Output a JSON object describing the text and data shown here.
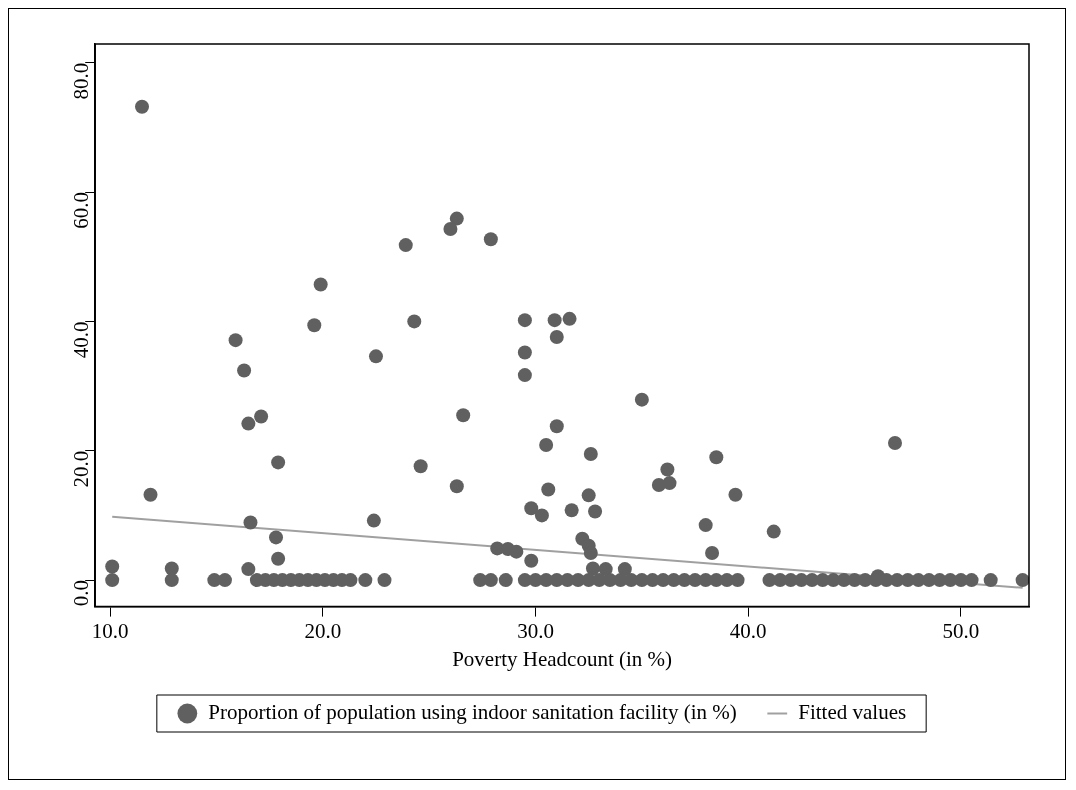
{
  "chart_data": {
    "type": "scatter",
    "line_style": "solid",
    "xlabel": "Poverty Headcount (in %)",
    "xlim": [
      9.3,
      53.2
    ],
    "ylim": [
      -4.1,
      82.9
    ],
    "xticks": [
      {
        "value": 10,
        "label": "10.0"
      },
      {
        "value": 20,
        "label": "20.0"
      },
      {
        "value": 30,
        "label": "30.0"
      },
      {
        "value": 40,
        "label": "40.0"
      },
      {
        "value": 50,
        "label": "50.0"
      }
    ],
    "yticks": [
      {
        "value": 0,
        "label": "0.0"
      },
      {
        "value": 20,
        "label": "20.0"
      },
      {
        "value": 40,
        "label": "40.0"
      },
      {
        "value": 60,
        "label": "60.0"
      },
      {
        "value": 80,
        "label": "80.0"
      }
    ],
    "grid": false,
    "legend": "bottom",
    "marker": "circle",
    "series": [
      {
        "name": "Proportion of population using indoor sanitation facility (in %)",
        "color": "#606060",
        "x": [
          11.5,
          11.9,
          23.9,
          19.9,
          19.6,
          24.3,
          15.9,
          16.3,
          22.5,
          17.1,
          16.5,
          17.9,
          24.6,
          16.6,
          22.4,
          17.8,
          17.9,
          16.5,
          10.1,
          12.9,
          26.3,
          26.0,
          27.9,
          29.5,
          30.9,
          31.6,
          31.0,
          29.5,
          29.5,
          35.0,
          26.6,
          31.0,
          30.5,
          32.6,
          38.5,
          36.2,
          26.3,
          30.6,
          35.8,
          36.3,
          32.5,
          38.0,
          29.8,
          30.3,
          31.7,
          32.8,
          32.2,
          32.5,
          32.6,
          28.2,
          28.7,
          29.1,
          29.8,
          38.3,
          34.2,
          32.7,
          33.3,
          39.4,
          41.2,
          46.9,
          46.1,
          10.1,
          12.9,
          14.9,
          15.4,
          16.9,
          17.3,
          17.7,
          18.1,
          18.5,
          18.9,
          19.3,
          19.7,
          20.1,
          20.5,
          20.9,
          21.3,
          22.0,
          22.9,
          27.4,
          27.9,
          28.6,
          29.5,
          30.0,
          30.5,
          31.0,
          31.5,
          32.0,
          32.5,
          33.0,
          33.5,
          34.0,
          34.5,
          35.0,
          35.5,
          36.0,
          36.5,
          37.0,
          37.5,
          38.0,
          38.5,
          39.0,
          39.5,
          41.0,
          41.5,
          42.0,
          42.5,
          43.0,
          43.5,
          44.0,
          44.5,
          45.0,
          45.5,
          46.0,
          46.5,
          47.0,
          47.5,
          48.0,
          48.5,
          49.0,
          49.5,
          50.0,
          50.5,
          51.4,
          52.9
        ],
        "values": [
          73.2,
          13.2,
          51.8,
          45.7,
          39.4,
          40.0,
          37.1,
          32.4,
          34.6,
          25.3,
          24.2,
          18.2,
          17.6,
          8.9,
          9.2,
          6.6,
          3.3,
          1.7,
          2.1,
          1.8,
          55.9,
          54.3,
          52.7,
          40.2,
          40.2,
          40.4,
          37.6,
          35.2,
          31.7,
          27.9,
          25.5,
          23.8,
          20.9,
          19.5,
          19.0,
          17.1,
          14.5,
          14.0,
          14.7,
          15.0,
          13.1,
          8.5,
          11.1,
          10.0,
          10.8,
          10.6,
          6.4,
          5.3,
          4.2,
          4.9,
          4.8,
          4.4,
          3.0,
          4.2,
          1.7,
          1.8,
          1.7,
          13.2,
          7.5,
          21.2,
          0.6,
          0,
          0,
          0,
          0,
          0,
          0,
          0,
          0,
          0,
          0,
          0,
          0,
          0,
          0,
          0,
          0,
          0,
          0,
          0,
          0,
          0,
          0,
          0,
          0,
          0,
          0,
          0,
          0,
          0,
          0,
          0,
          0,
          0,
          0,
          0,
          0,
          0,
          0,
          0,
          0,
          0,
          0,
          0,
          0,
          0,
          0,
          0,
          0,
          0,
          0,
          0,
          0,
          0,
          0,
          0,
          0,
          0,
          0,
          0,
          0,
          0,
          0,
          0,
          0
        ]
      },
      {
        "type": "line",
        "name": "Fitted values",
        "color": "#a0a0a0",
        "marker": "none",
        "x": [
          10.1,
          52.9
        ],
        "values": [
          9.8,
          -1.2
        ]
      }
    ]
  }
}
